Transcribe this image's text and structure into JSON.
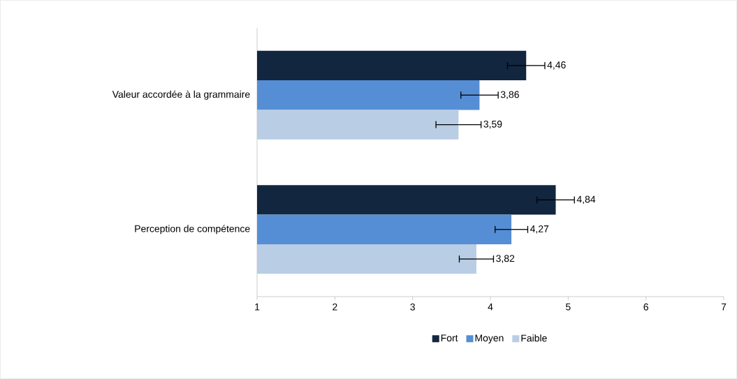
{
  "chart_data": {
    "type": "bar",
    "orientation": "horizontal",
    "categories": [
      "Valeur accordée à la grammaire",
      "Perception de compétence"
    ],
    "series": [
      {
        "name": "Fort",
        "color": "#12263f",
        "values": [
          4.46,
          4.84
        ],
        "errors": [
          0.24,
          0.24
        ],
        "value_labels": [
          "4,46",
          "4,84"
        ]
      },
      {
        "name": "Moyen",
        "color": "#558ed5",
        "values": [
          3.86,
          4.27
        ],
        "errors": [
          0.24,
          0.21
        ],
        "value_labels": [
          "3,86",
          "4,27"
        ]
      },
      {
        "name": "Faible",
        "color": "#b9cde5",
        "values": [
          3.59,
          3.82
        ],
        "errors": [
          0.29,
          0.22
        ],
        "value_labels": [
          "3,59",
          "3,82"
        ]
      }
    ],
    "xlim": [
      1,
      7
    ],
    "xticks": [
      1,
      2,
      3,
      4,
      5,
      6,
      7
    ],
    "grid": false,
    "legend": "bottom"
  }
}
